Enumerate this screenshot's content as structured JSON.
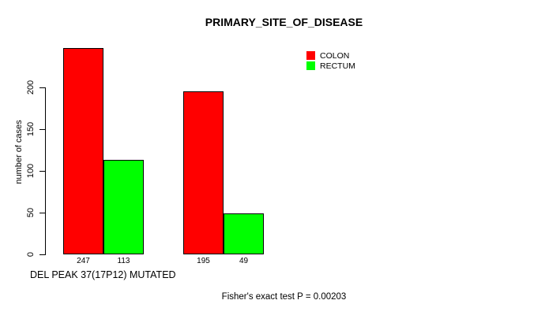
{
  "chart_data": {
    "type": "bar",
    "title": "PRIMARY_SITE_OF_DISEASE",
    "ylabel": "number of cases",
    "xlabel": "DEL PEAK 37(17P12) MUTATED",
    "annotation": "Fisher's exact test P = 0.00203",
    "series": [
      {
        "name": "COLON",
        "color": "#ff0000",
        "values": [
          247,
          195
        ]
      },
      {
        "name": "RECTUM",
        "color": "#00ff00",
        "values": [
          113,
          49
        ]
      }
    ],
    "bar_value_labels": [
      "247",
      "113",
      "195",
      "49"
    ],
    "yticks": [
      0,
      50,
      100,
      150,
      200
    ],
    "ylim": [
      0,
      200
    ],
    "legend_position": "top-right",
    "grid": false,
    "background_color": "#ffffff",
    "axis_color": "#000000"
  }
}
